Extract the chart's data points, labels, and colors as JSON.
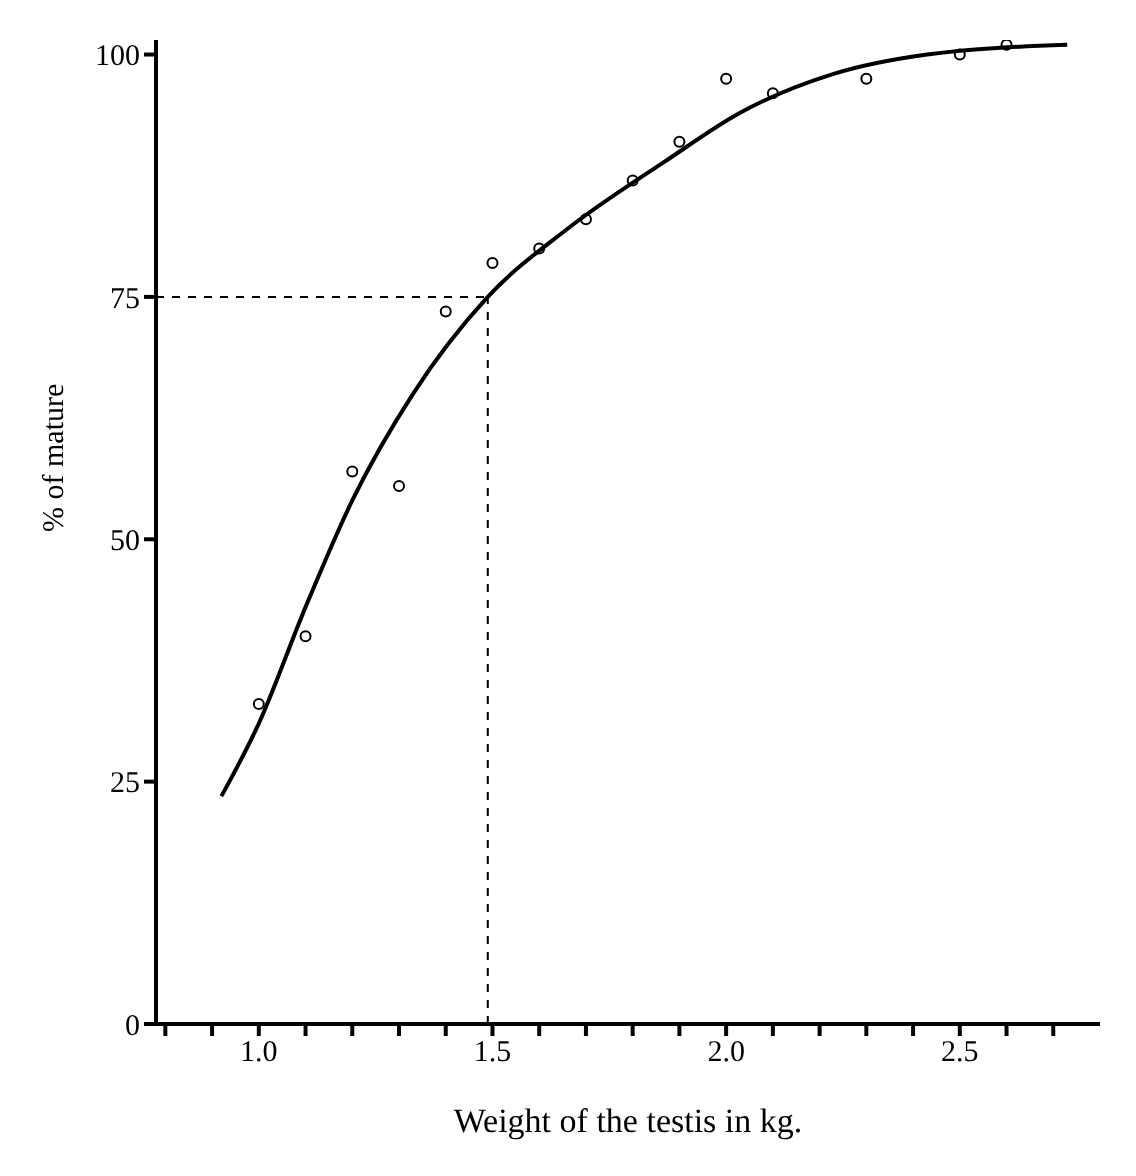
{
  "chart_data": {
    "type": "scatter",
    "xlabel": "Weight of the testis in kg.",
    "ylabel": "% of mature",
    "xlim": [
      0.78,
      2.8
    ],
    "ylim": [
      0,
      101.5
    ],
    "xticks": [
      {
        "value": 0.8,
        "label": null
      },
      {
        "value": 0.9,
        "label": null
      },
      "1.0",
      {
        "value": 1.1,
        "label": null
      },
      {
        "value": 1.2,
        "label": null
      },
      {
        "value": 1.3,
        "label": null
      },
      {
        "value": 1.4,
        "label": null
      },
      1.5,
      {
        "value": 1.6,
        "label": null
      },
      {
        "value": 1.7,
        "label": null
      },
      {
        "value": 1.8,
        "label": null
      },
      {
        "value": 1.9,
        "label": null
      },
      {
        "value": 2.0,
        "label": "2.0"
      },
      {
        "value": 2.1,
        "label": null
      },
      {
        "value": 2.2,
        "label": null
      },
      {
        "value": 2.3,
        "label": null
      },
      {
        "value": 2.4,
        "label": null
      },
      2.5,
      {
        "value": 2.6,
        "label": null
      },
      {
        "value": 2.7,
        "label": null
      }
    ],
    "yticks": [
      0,
      25,
      50,
      75,
      100
    ],
    "grid": false,
    "series": [
      {
        "color": "#000000",
        "marker": "circle",
        "x": [
          1.0,
          1.1,
          1.2,
          1.3,
          1.4,
          1.5,
          1.6,
          1.7,
          1.8,
          1.9,
          2.0,
          2.1,
          2.3,
          2.5,
          2.6
        ],
        "values": [
          33,
          40,
          57,
          55.5,
          73.5,
          78.5,
          80,
          83,
          87,
          91,
          97.5,
          96,
          97.5,
          100,
          101
        ]
      },
      {
        "type": "line",
        "color": "#000000",
        "marker": "none",
        "line_style": "solid",
        "x": [
          0.92,
          1.0,
          1.1,
          1.2,
          1.33,
          1.49,
          1.66,
          1.87,
          2.03,
          2.23,
          2.43,
          2.73
        ],
        "values": [
          23.5,
          31,
          43,
          54,
          65,
          75,
          82,
          89,
          94,
          98,
          100,
          101
        ]
      }
    ],
    "ref_lines": [
      {
        "axis": "y",
        "value": 75,
        "line_style": "dashed",
        "color": "#000000"
      },
      {
        "axis": "x",
        "value": 1.49,
        "line_style": "dashed",
        "color": "#000000"
      }
    ]
  }
}
